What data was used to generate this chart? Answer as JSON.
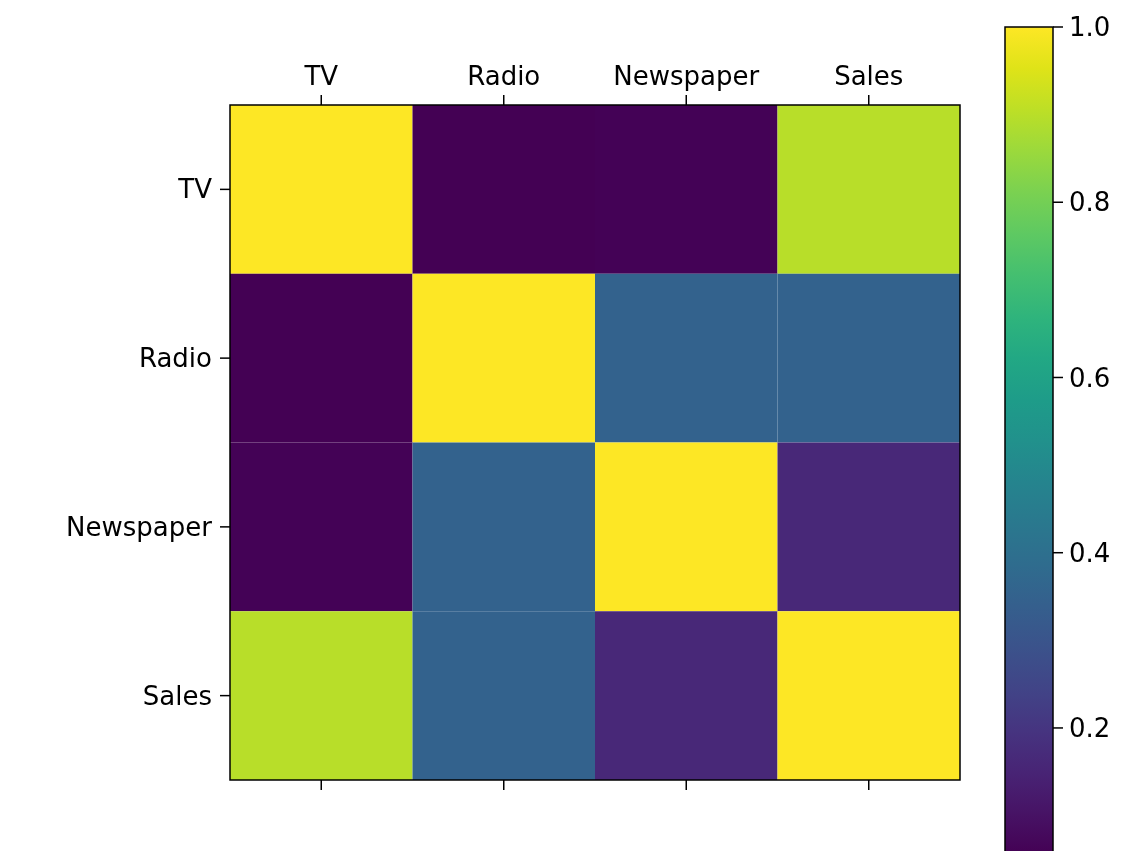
{
  "chart_data": {
    "type": "heatmap",
    "categories": [
      "TV",
      "Radio",
      "Newspaper",
      "Sales"
    ],
    "y_categories": [
      "TV",
      "Radio",
      "Newspaper",
      "Sales"
    ],
    "cells": [
      [
        1,
        0.05,
        0.06,
        0.9
      ],
      [
        0.05,
        1,
        0.35,
        0.35
      ],
      [
        0.06,
        0.35,
        1,
        0.16
      ],
      [
        0.9,
        0.35,
        0.16,
        1
      ]
    ],
    "clim": [
      0.055,
      1
    ],
    "cticks": [
      0.2,
      0.4,
      0.6,
      0.8,
      {
        "value": 1,
        "label": "1.0"
      }
    ]
  }
}
